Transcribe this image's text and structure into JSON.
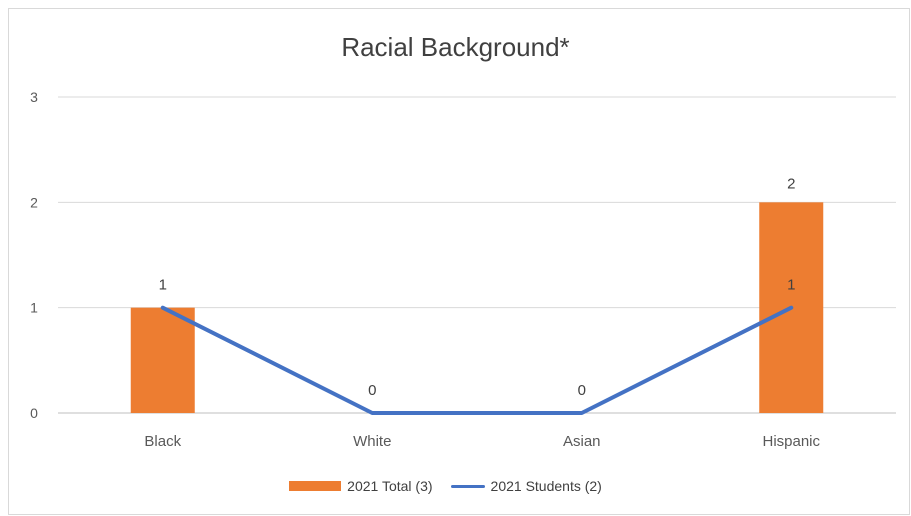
{
  "chart_data": {
    "type": "bar",
    "title": "Racial Background*",
    "categories": [
      "Black",
      "White",
      "Asian",
      "Hispanic"
    ],
    "series": [
      {
        "name": "2021 Total (3)",
        "type": "bar",
        "values": [
          1,
          0,
          0,
          2
        ],
        "color": "#ED7D31"
      },
      {
        "name": "2021 Students (2)",
        "type": "line",
        "values": [
          1,
          0,
          0,
          1
        ],
        "color": "#4472C4"
      }
    ],
    "y_ticks": [
      "0",
      "1",
      "2",
      "3"
    ],
    "ylim": [
      0,
      3
    ],
    "grid": true,
    "legend_position": "bottom",
    "data_labels": {
      "bar_labels": [
        "",
        "",
        "",
        "2"
      ],
      "line_labels": [
        "1",
        "0",
        "0",
        "1"
      ]
    }
  }
}
